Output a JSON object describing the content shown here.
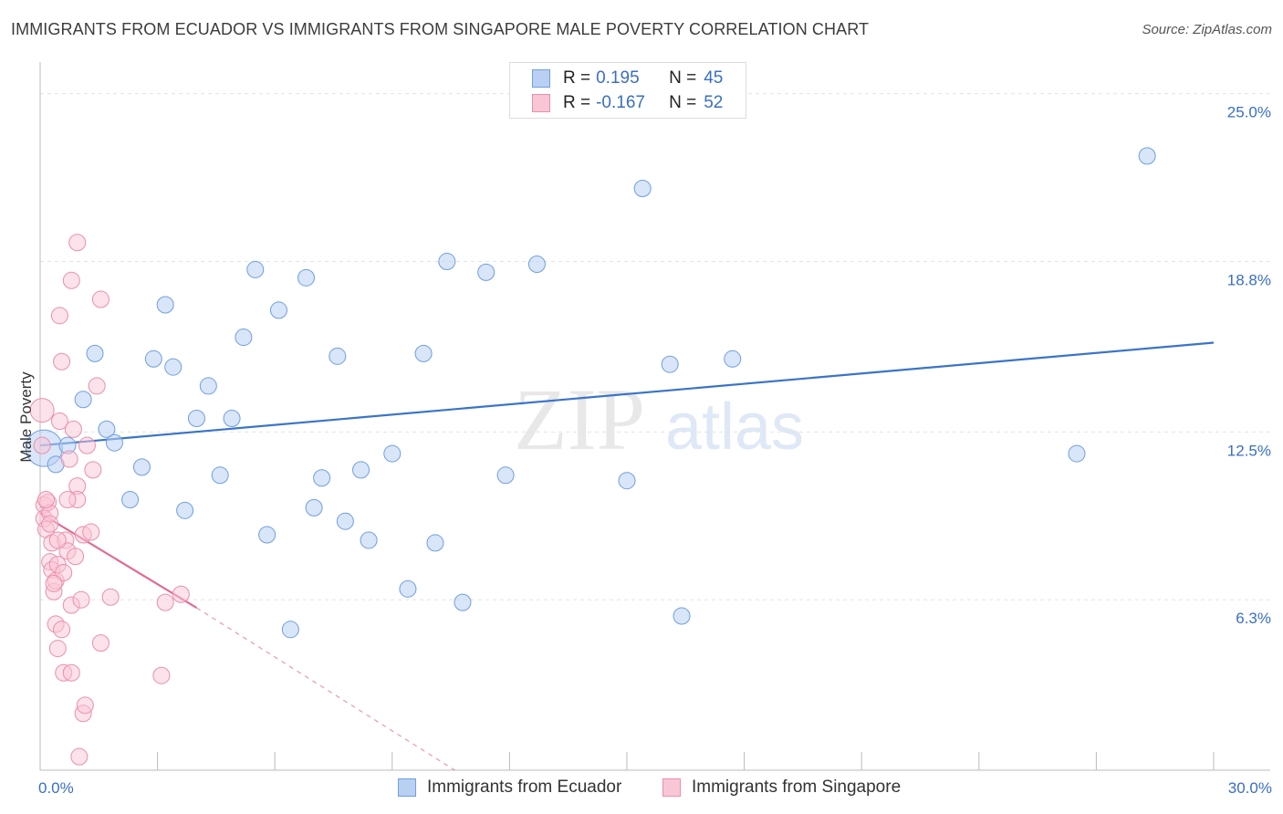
{
  "title": "IMMIGRANTS FROM ECUADOR VS IMMIGRANTS FROM SINGAPORE MALE POVERTY CORRELATION CHART",
  "source": "Source: ZipAtlas.com",
  "watermark": {
    "zip": "ZIP",
    "atlas": "atlas"
  },
  "legend": {
    "r_label": "R =",
    "n_label": "N =",
    "rows": [
      {
        "r": "0.195",
        "n": "45",
        "fill": "#b9d0f3",
        "stroke": "#6f9fe0"
      },
      {
        "r": "-0.167",
        "n": "52",
        "fill": "#f9c6d5",
        "stroke": "#ea8fab"
      }
    ]
  },
  "bottom_legend": {
    "items": [
      {
        "label": "Immigrants from Ecuador"
      },
      {
        "label": "Immigrants from Singapore"
      }
    ]
  },
  "chart_data": {
    "type": "scatter",
    "title": "IMMIGRANTS FROM ECUADOR VS IMMIGRANTS FROM SINGAPORE MALE POVERTY CORRELATION CHART",
    "xlabel": "",
    "ylabel": "Male Poverty",
    "xlim": [
      0,
      30
    ],
    "ylim": [
      0,
      25.9
    ],
    "x_tick_labels": [
      {
        "value": 0,
        "label": "0.0%"
      },
      {
        "value": 30,
        "label": "30.0%"
      }
    ],
    "y_tick_labels": [
      {
        "value": 6.3,
        "label": "6.3%"
      },
      {
        "value": 12.5,
        "label": "12.5%"
      },
      {
        "value": 18.8,
        "label": "18.8%"
      },
      {
        "value": 25.0,
        "label": "25.0%"
      }
    ],
    "colors": {
      "ecuador_fill": "#b9d0f3",
      "ecuador_stroke": "#6f9fe0",
      "ecuador_line": "#3a74c9",
      "singapore_fill": "#f9c6d5",
      "singapore_stroke": "#ea8fab",
      "singapore_line": "#e06c95",
      "axis": "#bbbbbb",
      "grid": "#e4e4e4",
      "tick_label": "#3a6fc4"
    },
    "series": [
      {
        "name": "Immigrants from Ecuador",
        "trend": {
          "x0": 0,
          "y0": 12.0,
          "x1": 30,
          "y1": 15.8
        },
        "points": [
          [
            0.1,
            11.9,
            20
          ],
          [
            0.4,
            11.3,
            9
          ],
          [
            0.7,
            12.0,
            9
          ],
          [
            1.1,
            13.7,
            9
          ],
          [
            1.4,
            15.4,
            9
          ],
          [
            1.7,
            12.6,
            9
          ],
          [
            1.9,
            12.1,
            9
          ],
          [
            2.3,
            10.0,
            9
          ],
          [
            2.6,
            11.2,
            9
          ],
          [
            2.9,
            15.2,
            9
          ],
          [
            3.2,
            17.2,
            9
          ],
          [
            3.4,
            14.9,
            9
          ],
          [
            3.7,
            9.6,
            9
          ],
          [
            4.0,
            13.0,
            9
          ],
          [
            4.3,
            14.2,
            9
          ],
          [
            4.6,
            10.9,
            9
          ],
          [
            4.9,
            13.0,
            9
          ],
          [
            5.2,
            16.0,
            9
          ],
          [
            5.5,
            18.5,
            9
          ],
          [
            5.8,
            8.7,
            9
          ],
          [
            6.1,
            17.0,
            9
          ],
          [
            6.4,
            5.2,
            9
          ],
          [
            6.8,
            18.2,
            9
          ],
          [
            7.0,
            9.7,
            9
          ],
          [
            7.2,
            10.8,
            9
          ],
          [
            7.6,
            15.3,
            9
          ],
          [
            7.8,
            9.2,
            9
          ],
          [
            8.2,
            11.1,
            9
          ],
          [
            8.4,
            8.5,
            9
          ],
          [
            9.0,
            11.7,
            9
          ],
          [
            9.4,
            6.7,
            9
          ],
          [
            9.8,
            15.4,
            9
          ],
          [
            10.1,
            8.4,
            9
          ],
          [
            10.4,
            18.8,
            9
          ],
          [
            10.8,
            6.2,
            9
          ],
          [
            11.4,
            18.4,
            9
          ],
          [
            11.9,
            10.9,
            9
          ],
          [
            12.7,
            18.7,
            9
          ],
          [
            15.0,
            10.7,
            9
          ],
          [
            15.4,
            21.5,
            9
          ],
          [
            16.1,
            15.0,
            9
          ],
          [
            16.4,
            5.7,
            9
          ],
          [
            17.7,
            15.2,
            9
          ],
          [
            26.5,
            11.7,
            9
          ],
          [
            28.3,
            22.7,
            9
          ]
        ]
      },
      {
        "name": "Immigrants from Singapore",
        "trend": {
          "x0": 0,
          "y0": 9.5,
          "x1": 4.0,
          "y1": 6.0,
          "dash_to_x": 10.6,
          "dash_to_y": 0.0
        },
        "points": [
          [
            0.05,
            13.3,
            13
          ],
          [
            0.05,
            12.0,
            9
          ],
          [
            0.1,
            9.8,
            9
          ],
          [
            0.1,
            9.3,
            9
          ],
          [
            0.15,
            8.9,
            9
          ],
          [
            0.2,
            9.9,
            9
          ],
          [
            0.25,
            9.5,
            9
          ],
          [
            0.25,
            7.7,
            9
          ],
          [
            0.3,
            8.4,
            9
          ],
          [
            0.3,
            7.4,
            9
          ],
          [
            0.35,
            6.6,
            9
          ],
          [
            0.4,
            5.4,
            9
          ],
          [
            0.4,
            7.0,
            9
          ],
          [
            0.45,
            4.5,
            9
          ],
          [
            0.45,
            7.6,
            9
          ],
          [
            0.5,
            16.8,
            9
          ],
          [
            0.5,
            12.9,
            9
          ],
          [
            0.55,
            15.1,
            9
          ],
          [
            0.55,
            5.2,
            9
          ],
          [
            0.6,
            7.3,
            9
          ],
          [
            0.6,
            3.6,
            9
          ],
          [
            0.65,
            8.5,
            9
          ],
          [
            0.7,
            8.1,
            9
          ],
          [
            0.75,
            11.5,
            9
          ],
          [
            0.8,
            18.1,
            9
          ],
          [
            0.8,
            6.1,
            9
          ],
          [
            0.8,
            3.6,
            9
          ],
          [
            0.85,
            12.6,
            9
          ],
          [
            0.9,
            7.9,
            9
          ],
          [
            0.95,
            19.5,
            9
          ],
          [
            0.95,
            10.5,
            9
          ],
          [
            0.95,
            10.0,
            9
          ],
          [
            1.0,
            0.5,
            9
          ],
          [
            1.05,
            6.3,
            9
          ],
          [
            1.1,
            8.7,
            9
          ],
          [
            1.1,
            2.1,
            9
          ],
          [
            1.15,
            2.4,
            9
          ],
          [
            1.2,
            12.0,
            9
          ],
          [
            1.3,
            8.8,
            9
          ],
          [
            1.35,
            11.1,
            9
          ],
          [
            1.45,
            14.2,
            9
          ],
          [
            1.55,
            17.4,
            9
          ],
          [
            1.55,
            4.7,
            9
          ],
          [
            1.8,
            6.4,
            9
          ],
          [
            3.1,
            3.5,
            9
          ],
          [
            3.2,
            6.2,
            9
          ],
          [
            3.6,
            6.5,
            9
          ],
          [
            0.15,
            10.0,
            9
          ],
          [
            0.35,
            6.9,
            9
          ],
          [
            0.25,
            9.1,
            9
          ],
          [
            0.45,
            8.5,
            9
          ],
          [
            0.7,
            10.0,
            9
          ]
        ]
      }
    ]
  }
}
